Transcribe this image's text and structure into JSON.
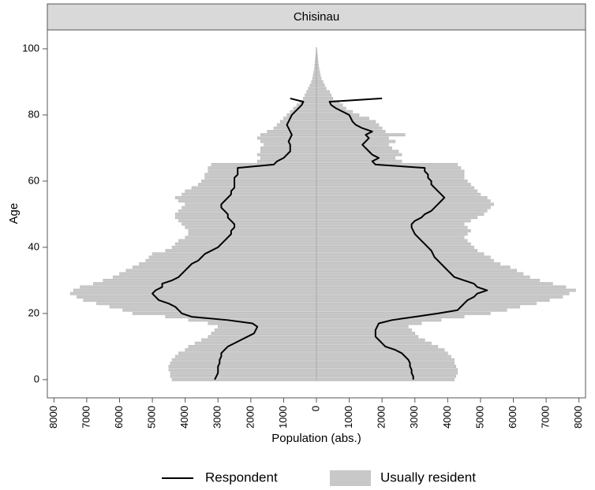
{
  "chart_data": {
    "type": "population_pyramid",
    "panel_title": "Chisinau",
    "x_label": "Population (abs.)",
    "y_label": "Age",
    "xlim": [
      -8200,
      8200
    ],
    "ylim": [
      -5.5,
      105.7
    ],
    "xticks": [
      {
        "value": -8000,
        "label": "8000"
      },
      {
        "value": -7000,
        "label": "7000"
      },
      {
        "value": -6000,
        "label": "6000"
      },
      {
        "value": -5000,
        "label": "5000"
      },
      {
        "value": -4000,
        "label": "4000"
      },
      {
        "value": -3000,
        "label": "3000"
      },
      {
        "value": -2000,
        "label": "2000"
      },
      {
        "value": -1000,
        "label": "1000"
      },
      0,
      1000,
      2000,
      3000,
      4000,
      5000,
      6000,
      7000,
      8000
    ],
    "yticks": [
      0,
      20,
      40,
      60,
      80,
      100
    ],
    "y": [
      0,
      1,
      2,
      3,
      4,
      5,
      6,
      7,
      8,
      9,
      10,
      11,
      12,
      13,
      14,
      15,
      16,
      17,
      18,
      19,
      20,
      21,
      22,
      23,
      24,
      25,
      26,
      27,
      28,
      29,
      30,
      31,
      32,
      33,
      34,
      35,
      36,
      37,
      38,
      39,
      40,
      41,
      42,
      43,
      44,
      45,
      46,
      47,
      48,
      49,
      50,
      51,
      52,
      53,
      54,
      55,
      56,
      57,
      58,
      59,
      60,
      61,
      62,
      63,
      64,
      65,
      66,
      67,
      68,
      69,
      70,
      71,
      72,
      73,
      74,
      75,
      76,
      77,
      78,
      79,
      80,
      81,
      82,
      83,
      84,
      85,
      86,
      87,
      88,
      89,
      90,
      91,
      92,
      93,
      94,
      95,
      96,
      97,
      98,
      99,
      100
    ],
    "series": [
      {
        "name": "Usually resident",
        "kind": "bar",
        "color": "#c8c8c8",
        "left_values": [
          -4400,
          -4450,
          -4450,
          -4500,
          -4500,
          -4450,
          -4400,
          -4300,
          -4200,
          -4000,
          -3900,
          -3700,
          -3500,
          -3300,
          -3200,
          -3100,
          -3000,
          -3300,
          -3900,
          -4600,
          -5600,
          -5900,
          -6300,
          -6700,
          -7100,
          -7300,
          -7500,
          -7400,
          -7200,
          -6800,
          -6500,
          -6200,
          -6000,
          -5800,
          -5600,
          -5400,
          -5200,
          -5100,
          -5000,
          -4600,
          -4400,
          -4300,
          -4200,
          -4000,
          -3900,
          -3900,
          -4000,
          -4100,
          -4200,
          -4300,
          -4300,
          -4200,
          -4100,
          -4000,
          -4200,
          -4300,
          -4100,
          -4000,
          -3800,
          -3600,
          -3500,
          -3400,
          -3400,
          -3300,
          -3300,
          -3200,
          -1800,
          -1700,
          -1800,
          -1700,
          -1700,
          -1600,
          -1700,
          -1800,
          -1700,
          -1500,
          -1300,
          -1200,
          -1100,
          -1000,
          -900,
          -800,
          -700,
          -600,
          -500,
          -400,
          -350,
          -300,
          -250,
          -200,
          -150,
          -120,
          -100,
          -80,
          -60,
          -50,
          -40,
          -30,
          -20,
          -10,
          -10
        ],
        "right_values": [
          4200,
          4250,
          4300,
          4300,
          4250,
          4200,
          4200,
          4100,
          4000,
          3900,
          3700,
          3500,
          3300,
          3100,
          3000,
          2900,
          2800,
          3200,
          3800,
          4500,
          5300,
          5800,
          6200,
          6700,
          7100,
          7500,
          7700,
          7900,
          7600,
          7200,
          6800,
          6500,
          6300,
          6100,
          5900,
          5600,
          5400,
          5300,
          5100,
          4900,
          4800,
          4700,
          4600,
          4500,
          4600,
          4700,
          4600,
          4500,
          4700,
          4900,
          5100,
          5200,
          5300,
          5400,
          5300,
          5200,
          5000,
          4900,
          4800,
          4700,
          4600,
          4500,
          4500,
          4500,
          4400,
          4300,
          2600,
          2400,
          2600,
          2500,
          2300,
          2200,
          2400,
          2200,
          2700,
          2100,
          2000,
          1900,
          1800,
          1600,
          1300,
          1100,
          900,
          800,
          700,
          500,
          450,
          400,
          300,
          250,
          200,
          150,
          120,
          100,
          80,
          60,
          50,
          40,
          30,
          20,
          10
        ]
      },
      {
        "name": "Respondent",
        "kind": "line",
        "color": "#000000",
        "left_values": [
          -3100,
          -3050,
          -3000,
          -3000,
          -3000,
          -2950,
          -2950,
          -2900,
          -2900,
          -2800,
          -2700,
          -2500,
          -2300,
          -2100,
          -1900,
          -1850,
          -1800,
          -1950,
          -2700,
          -3800,
          -4100,
          -4200,
          -4300,
          -4500,
          -4800,
          -4900,
          -5000,
          -4900,
          -4700,
          -4700,
          -4400,
          -4200,
          -4100,
          -4000,
          -3900,
          -3800,
          -3600,
          -3500,
          -3400,
          -3200,
          -3000,
          -2900,
          -2800,
          -2700,
          -2600,
          -2600,
          -2500,
          -2500,
          -2600,
          -2700,
          -2700,
          -2800,
          -2900,
          -2900,
          -2800,
          -2700,
          -2600,
          -2600,
          -2500,
          -2500,
          -2500,
          -2500,
          -2400,
          -2400,
          -2400,
          -1300,
          -1200,
          -1000,
          -900,
          -800,
          -800,
          -800,
          -850,
          -800,
          -750,
          -800,
          -850,
          -900,
          -850,
          -800,
          -750,
          -650,
          -550,
          -450,
          -400,
          -800,
          null,
          null,
          null,
          null,
          null,
          null,
          null,
          null,
          null,
          null,
          null,
          null,
          null,
          null,
          null
        ],
        "right_values": [
          2950,
          2950,
          2900,
          2900,
          2850,
          2850,
          2800,
          2700,
          2600,
          2400,
          2100,
          2000,
          1900,
          1800,
          1800,
          1800,
          1850,
          1900,
          2300,
          3000,
          3700,
          4300,
          4400,
          4500,
          4600,
          4800,
          4900,
          5200,
          4900,
          4800,
          4500,
          4200,
          4100,
          4000,
          3900,
          3800,
          3700,
          3600,
          3550,
          3500,
          3400,
          3300,
          3200,
          3100,
          3000,
          2950,
          2900,
          2900,
          3000,
          3200,
          3300,
          3500,
          3600,
          3700,
          3800,
          3900,
          3800,
          3700,
          3600,
          3500,
          3500,
          3400,
          3400,
          3300,
          3300,
          1800,
          1700,
          1900,
          1700,
          1600,
          1500,
          1400,
          1500,
          1600,
          1500,
          1700,
          1400,
          1200,
          1100,
          1050,
          1000,
          800,
          600,
          450,
          400,
          2000,
          null,
          null,
          null,
          null,
          null,
          null,
          null,
          null,
          null,
          null,
          null,
          null,
          null,
          null,
          null
        ]
      }
    ]
  }
}
